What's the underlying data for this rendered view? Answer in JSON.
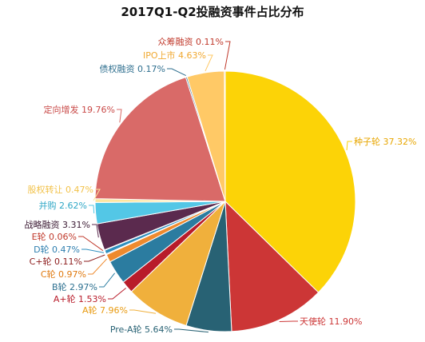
{
  "chart_data": {
    "type": "pie",
    "title": "2017Q1-Q2投融资事件占比分布",
    "slices": [
      {
        "label": "种子轮",
        "value": 37.32,
        "text": "种子轮 37.32%",
        "color": "#FCD307"
      },
      {
        "label": "天使轮",
        "value": 11.9,
        "text": "天使轮 11.90%",
        "color": "#CC3636"
      },
      {
        "label": "Pre-A轮",
        "value": 5.64,
        "text": "Pre-A轮 5.64%",
        "color": "#286274"
      },
      {
        "label": "A轮",
        "value": 7.96,
        "text": "A轮 7.96%",
        "color": "#F0B03C"
      },
      {
        "label": "A+轮",
        "value": 1.53,
        "text": "A+轮 1.53%",
        "color": "#B81C2A"
      },
      {
        "label": "B轮",
        "value": 2.97,
        "text": "B轮 2.97%",
        "color": "#2B7CA0"
      },
      {
        "label": "C轮",
        "value": 0.97,
        "text": "C轮 0.97%",
        "color": "#EE8A2E"
      },
      {
        "label": "C+轮",
        "value": 0.11,
        "text": "C+轮 0.11%",
        "color": "#8C1C1C"
      },
      {
        "label": "D轮",
        "value": 0.47,
        "text": "D轮 0.47%",
        "color": "#2F8FBF"
      },
      {
        "label": "E轮",
        "value": 0.06,
        "text": "E轮 0.06%",
        "color": "#C0392B"
      },
      {
        "label": "战略融资",
        "value": 3.31,
        "text": "战略融资 3.31%",
        "color": "#5B2A4E"
      },
      {
        "label": "并购",
        "value": 2.62,
        "text": "并购 2.62%",
        "color": "#53C7E6"
      },
      {
        "label": "股权转让",
        "value": 0.47,
        "text": "股权转让 0.47%",
        "color": "#FDE5A0"
      },
      {
        "label": "定向增发",
        "value": 19.76,
        "text": "定向增发 19.76%",
        "color": "#D96A68"
      },
      {
        "label": "债权融资",
        "value": 0.17,
        "text": "债权融资 0.17%",
        "color": "#2F6F8F"
      },
      {
        "label": "IPO上市",
        "value": 4.63,
        "text": "IPO上市 4.63%",
        "color": "#FFC966"
      },
      {
        "label": "众筹融资",
        "value": 0.11,
        "text": "众筹融资 0.11%",
        "color": "#C0392B"
      }
    ],
    "label_colors": {
      "种子轮": "#E8A600",
      "天使轮": "#CC3636",
      "Pre-A轮": "#286274",
      "A轮": "#E89A10",
      "A+轮": "#B81C2A",
      "B轮": "#2B6F8F",
      "C轮": "#E07A10",
      "C+轮": "#8C1C1C",
      "D轮": "#2F7FAF",
      "E轮": "#C0392B",
      "战略融资": "#3B1A33",
      "并购": "#2FA7C6",
      "股权转让": "#F2C24A",
      "定向增发": "#C94A48",
      "债权融资": "#2F6F8F",
      "IPO上市": "#F0A830",
      "众筹融资": "#C0392B"
    },
    "legend": "none"
  }
}
